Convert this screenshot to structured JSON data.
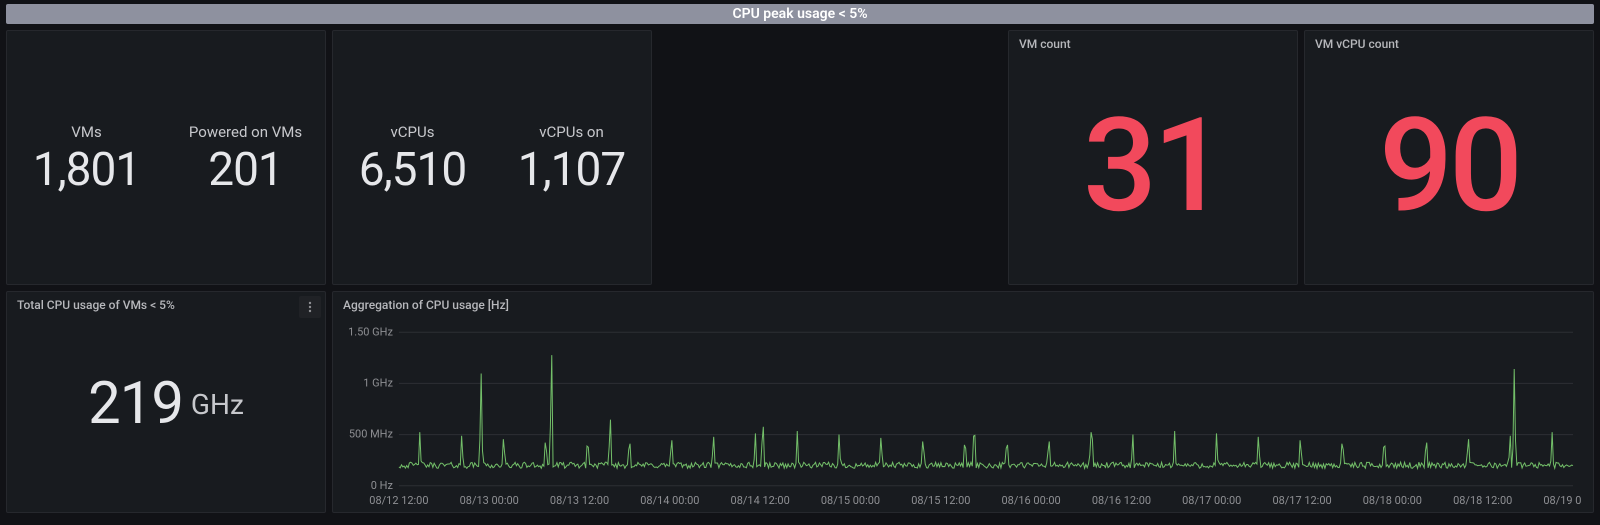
{
  "header": {
    "title": "CPU peak usage < 5%",
    "background_color": "#8e919f",
    "text_color": "#ffffff"
  },
  "top_panels": {
    "vms_panel": {
      "stats": [
        {
          "label": "VMs",
          "value": "1,801"
        },
        {
          "label": "Powered on VMs",
          "value": "201"
        }
      ],
      "value_color": "#e6e7ea",
      "label_color": "#c7c8cc"
    },
    "vcpus_panel": {
      "stats": [
        {
          "label": "vCPUs",
          "value": "6,510"
        },
        {
          "label": "vCPUs on",
          "value": "1,107"
        }
      ],
      "value_color": "#e6e7ea",
      "label_color": "#c7c8cc"
    },
    "vm_count_panel": {
      "title": "VM count",
      "value": "31",
      "value_color": "#f2495c"
    },
    "vm_vcpu_count_panel": {
      "title": "VM vCPU count",
      "value": "90",
      "value_color": "#f2495c"
    }
  },
  "bottom_panels": {
    "total_cpu_panel": {
      "title": "Total CPU usage of VMs < 5%",
      "value": "219",
      "unit": "GHz",
      "value_color": "#e6e7ea",
      "unit_color": "#c7c8cc"
    },
    "agg_chart": {
      "title": "Aggregation of CPU usage [Hz]",
      "type": "line",
      "line_color": "#73bf69",
      "background_color": "#181b1f",
      "grid_color": "#2c2f34",
      "axis_text_color": "#8e8f93",
      "y_axis": {
        "min_hz": 0,
        "max_hz": 1600000000,
        "ticks": [
          {
            "hz": 0,
            "label": "0 Hz"
          },
          {
            "hz": 500000000,
            "label": "500 MHz"
          },
          {
            "hz": 1000000000,
            "label": "1 GHz"
          },
          {
            "hz": 1500000000,
            "label": "1.50 GHz"
          }
        ]
      },
      "x_axis": {
        "ticks": [
          "08/12 12:00",
          "08/13 00:00",
          "08/13 12:00",
          "08/14 00:00",
          "08/14 12:00",
          "08/15 00:00",
          "08/15 12:00",
          "08/16 00:00",
          "08/16 12:00",
          "08/17 00:00",
          "08/17 12:00",
          "08/18 00:00",
          "08/18 12:00",
          "08/19 00:00"
        ]
      },
      "series": {
        "baseline_hz": 200000000,
        "noise_amplitude_hz": 30000000,
        "regular_spikes": {
          "count": 28,
          "height_hz": 340000000
        },
        "large_spikes_hz": [
          {
            "t_frac": 0.07,
            "hz": 1150000000
          },
          {
            "t_frac": 0.13,
            "hz": 1400000000
          },
          {
            "t_frac": 0.18,
            "hz": 720000000
          },
          {
            "t_frac": 0.31,
            "hz": 700000000
          },
          {
            "t_frac": 0.49,
            "hz": 680000000
          },
          {
            "t_frac": 0.59,
            "hz": 680000000
          },
          {
            "t_frac": 0.95,
            "hz": 1180000000
          }
        ],
        "line_width": 1
      }
    }
  },
  "theme": {
    "page_bg": "#111216",
    "panel_bg": "#181b1f",
    "panel_border": "#26282d",
    "text_primary": "#d8d9da",
    "text_muted": "#8e8f93"
  }
}
